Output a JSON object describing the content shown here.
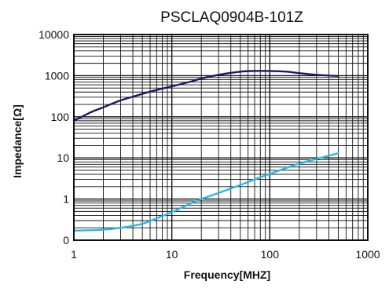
{
  "chart_data": {
    "type": "line",
    "title": "PSCLAQ0904B-101Z",
    "xlabel": "Frequency[MHZ]",
    "ylabel": "Impedance[Ω]",
    "x_scale": "log",
    "y_scale": "log",
    "xlim": [
      1,
      1000
    ],
    "ylim": [
      0.1,
      10000
    ],
    "grid": true,
    "x_ticks": [
      {
        "value": 1,
        "label": "1"
      },
      {
        "value": 10,
        "label": "10"
      },
      {
        "value": 100,
        "label": "100"
      },
      {
        "value": 1000,
        "label": "1000"
      }
    ],
    "y_ticks": [
      {
        "value": 0.1,
        "label": "0"
      },
      {
        "value": 1,
        "label": "1"
      },
      {
        "value": 10,
        "label": "10"
      },
      {
        "value": 100,
        "label": "100"
      },
      {
        "value": 1000,
        "label": "1000"
      },
      {
        "value": 10000,
        "label": "10000"
      }
    ],
    "series": [
      {
        "color": "#1a1a5e",
        "x": [
          1,
          1.5,
          2,
          3,
          5,
          7,
          10,
          15,
          20,
          30,
          50,
          70,
          100,
          150,
          200,
          300,
          500
        ],
        "y": [
          80,
          130,
          170,
          250,
          360,
          450,
          550,
          700,
          850,
          1050,
          1250,
          1300,
          1300,
          1250,
          1150,
          1050,
          980
        ]
      },
      {
        "color": "#29b6e8",
        "x": [
          1,
          2,
          3,
          5,
          7,
          10,
          15,
          20,
          30,
          50,
          70,
          100,
          150,
          200,
          300,
          500
        ],
        "y": [
          0.17,
          0.18,
          0.2,
          0.25,
          0.34,
          0.48,
          0.75,
          1.0,
          1.4,
          2.2,
          3.0,
          4.1,
          5.8,
          7.3,
          9.5,
          13
        ]
      }
    ]
  }
}
